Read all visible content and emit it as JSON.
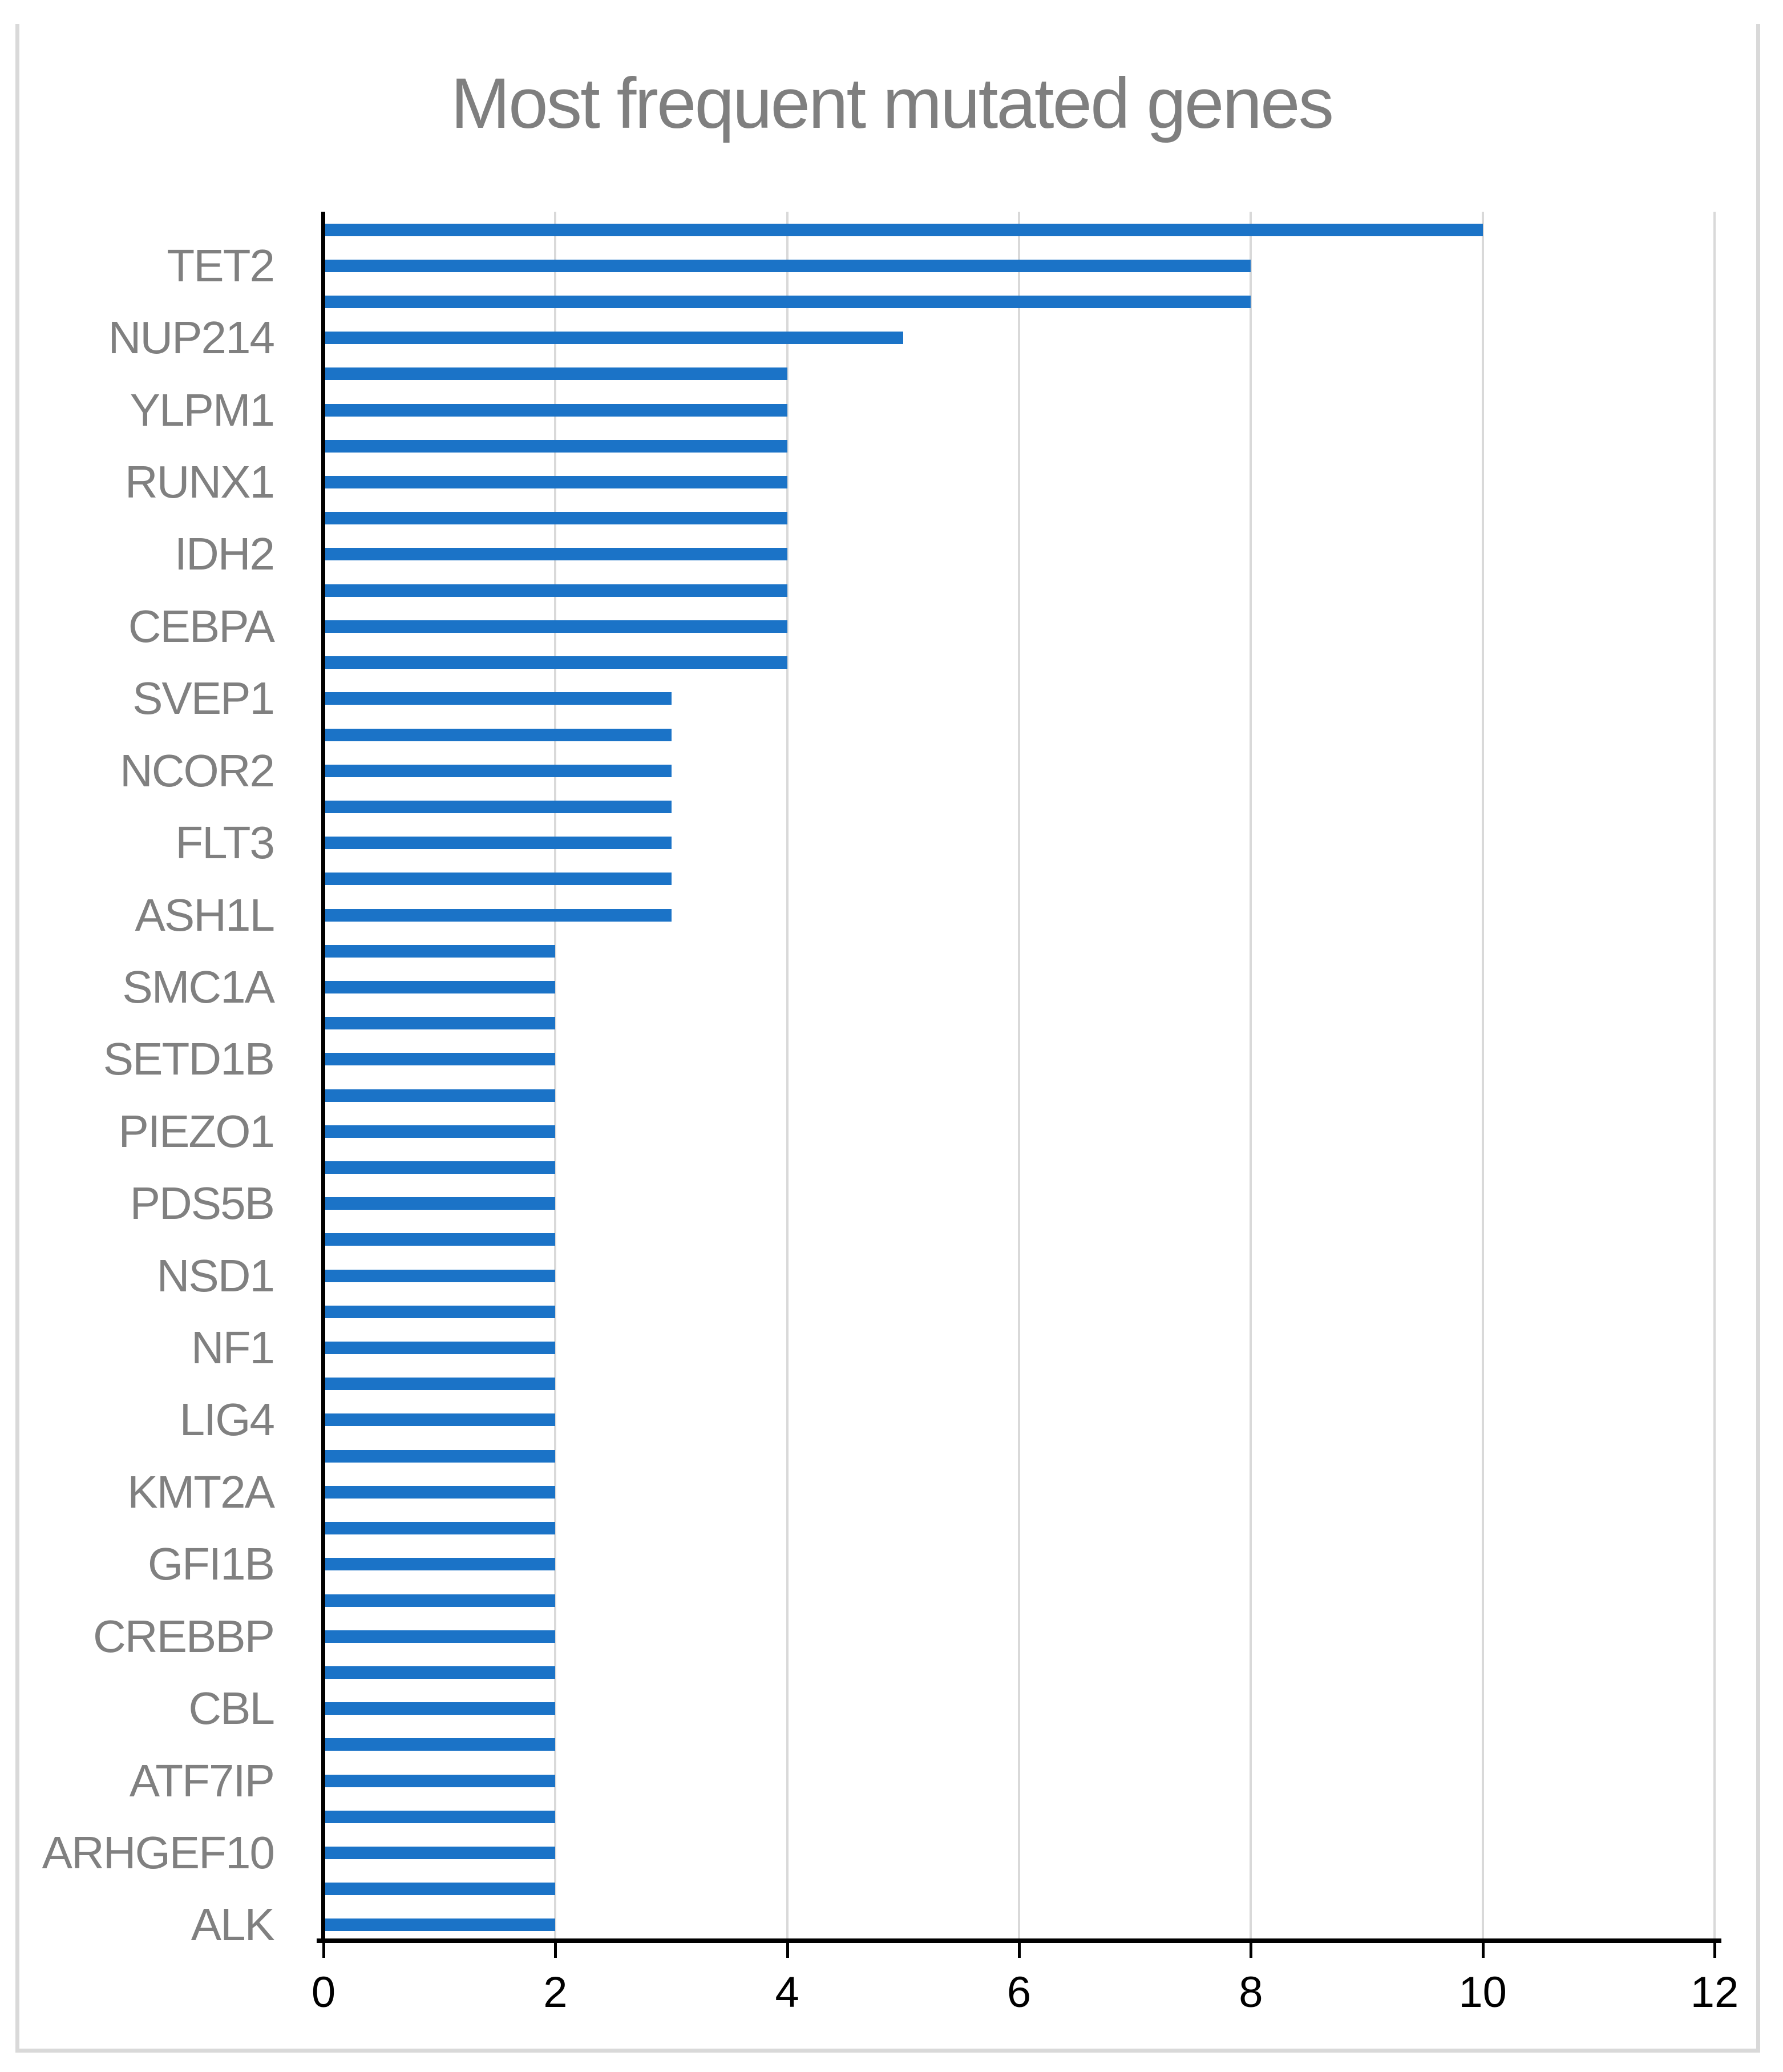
{
  "title": {
    "text": "Most frequent mutated genes"
  },
  "colors": {
    "bar": "#1B73C7",
    "gridline": "#D9D9D9",
    "axis": "#000000",
    "frame": "#D9D9D9",
    "title_text": "#7F7F7F",
    "category_label_text": "#808080",
    "tick_label_text": "#000000"
  },
  "chart_data": {
    "type": "bar",
    "orientation": "horizontal",
    "title": "Most frequent mutated genes",
    "xlabel": "",
    "ylabel": "",
    "xlim": [
      0,
      12
    ],
    "xticks": [
      0,
      2,
      4,
      6,
      8,
      10,
      12
    ],
    "grid": true,
    "legend": false,
    "bar_color": "#1B73C7",
    "note": "48 bars top-to-bottom; axis labels shown on every second bar",
    "rows": [
      {
        "label": "",
        "value": 10
      },
      {
        "label": "TET2",
        "value": 8
      },
      {
        "label": "",
        "value": 8
      },
      {
        "label": "NUP214",
        "value": 5
      },
      {
        "label": "",
        "value": 4
      },
      {
        "label": "YLPM1",
        "value": 4
      },
      {
        "label": "",
        "value": 4
      },
      {
        "label": "RUNX1",
        "value": 4
      },
      {
        "label": "",
        "value": 4
      },
      {
        "label": "IDH2",
        "value": 4
      },
      {
        "label": "",
        "value": 4
      },
      {
        "label": "CEBPA",
        "value": 4
      },
      {
        "label": "",
        "value": 4
      },
      {
        "label": "SVEP1",
        "value": 3
      },
      {
        "label": "",
        "value": 3
      },
      {
        "label": "NCOR2",
        "value": 3
      },
      {
        "label": "",
        "value": 3
      },
      {
        "label": "FLT3",
        "value": 3
      },
      {
        "label": "",
        "value": 3
      },
      {
        "label": "ASH1L",
        "value": 3
      },
      {
        "label": "",
        "value": 2
      },
      {
        "label": "SMC1A",
        "value": 2
      },
      {
        "label": "",
        "value": 2
      },
      {
        "label": "SETD1B",
        "value": 2
      },
      {
        "label": "",
        "value": 2
      },
      {
        "label": "PIEZO1",
        "value": 2
      },
      {
        "label": "",
        "value": 2
      },
      {
        "label": "PDS5B",
        "value": 2
      },
      {
        "label": "",
        "value": 2
      },
      {
        "label": "NSD1",
        "value": 2
      },
      {
        "label": "",
        "value": 2
      },
      {
        "label": "NF1",
        "value": 2
      },
      {
        "label": "",
        "value": 2
      },
      {
        "label": "LIG4",
        "value": 2
      },
      {
        "label": "",
        "value": 2
      },
      {
        "label": "KMT2A",
        "value": 2
      },
      {
        "label": "",
        "value": 2
      },
      {
        "label": "GFI1B",
        "value": 2
      },
      {
        "label": "",
        "value": 2
      },
      {
        "label": "CREBBP",
        "value": 2
      },
      {
        "label": "",
        "value": 2
      },
      {
        "label": "CBL",
        "value": 2
      },
      {
        "label": "",
        "value": 2
      },
      {
        "label": "ATF7IP",
        "value": 2
      },
      {
        "label": "",
        "value": 2
      },
      {
        "label": "ARHGEF10",
        "value": 2
      },
      {
        "label": "",
        "value": 2
      },
      {
        "label": "ALK",
        "value": 2
      }
    ]
  }
}
